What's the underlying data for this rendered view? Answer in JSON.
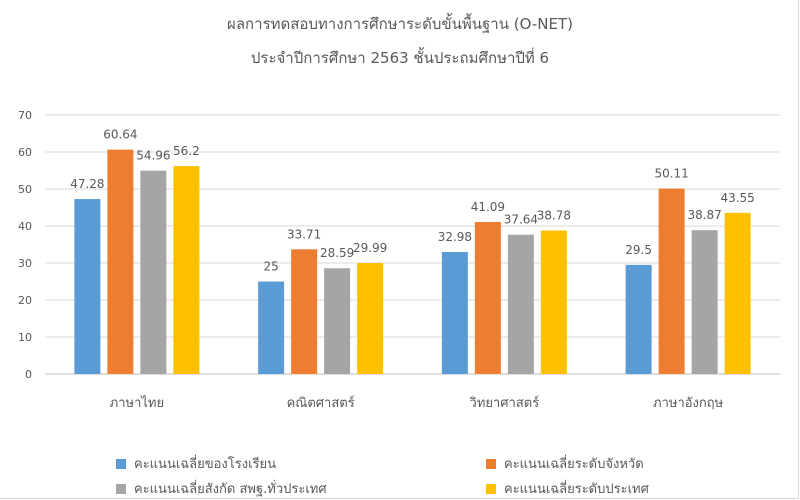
{
  "chart_data": {
    "type": "bar",
    "title": "ผลการทดสอบทางการศึกษาระดับขั้นพื้นฐาน (O-NET)",
    "subtitle": "ประจำปีการศึกษา 2563 ชั้นประถมศึกษาปีที่ 6",
    "categories": [
      "ภาษาไทย",
      "คณิตศาสตร์",
      "วิทยาศาสตร์",
      "ภาษาอังกฤษ"
    ],
    "series": [
      {
        "name": "คะแนนเฉลี่ยของโรงเรียน",
        "color": "#5b9bd5",
        "values": [
          47.28,
          25,
          32.98,
          29.5
        ],
        "labels": [
          "47.28",
          "25",
          "32.98",
          "29.5"
        ]
      },
      {
        "name": "คะแนนเฉลี่ยระดับจังหวัด",
        "color": "#ed7d31",
        "values": [
          60.64,
          33.71,
          41.09,
          50.11
        ],
        "labels": [
          "60.64",
          "33.71",
          "41.09",
          "50.11"
        ]
      },
      {
        "name": "คะแนนเฉลี่ยสังกัด สพฐ.ทั่วประเทศ",
        "color": "#a5a5a5",
        "values": [
          54.96,
          28.59,
          37.64,
          38.87
        ],
        "labels": [
          "54.96",
          "28.59",
          "37.64",
          "38.87"
        ]
      },
      {
        "name": "คะแนนเฉลี่ยระดับประเทศ",
        "color": "#ffc000",
        "values": [
          56.2,
          29.99,
          38.78,
          43.55
        ],
        "labels": [
          "56.2",
          "29.99",
          "38.78",
          "43.55"
        ]
      }
    ],
    "ylim": [
      0,
      70
    ],
    "yticks": [
      "0",
      "10",
      "20",
      "30",
      "40",
      "50",
      "60",
      "70"
    ],
    "grid": true,
    "legend_position": "bottom"
  }
}
